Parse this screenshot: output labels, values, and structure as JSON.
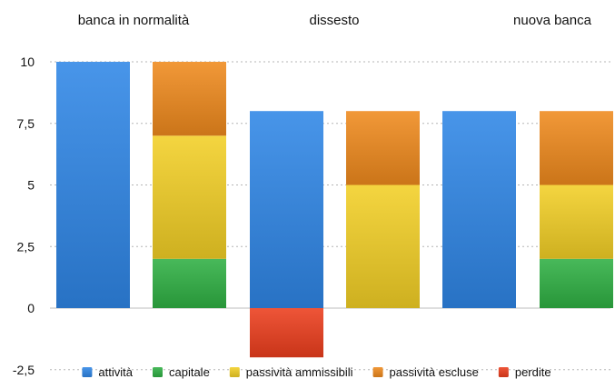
{
  "chart_data": {
    "type": "bar",
    "stacked": true,
    "groups": [
      "banca in normalità",
      "dissesto",
      "nuova banca"
    ],
    "ylim": [
      -2.5,
      10
    ],
    "yticks": [
      "10",
      "7,5",
      "5",
      "2,5",
      "0",
      "-2,5"
    ],
    "ytick_values": [
      10,
      7.5,
      5,
      2.5,
      0,
      -2.5
    ],
    "grid": true,
    "legend_position": "bottom",
    "legend": [
      {
        "key": "attivita",
        "label": "attività",
        "color": "#2f86e6"
      },
      {
        "key": "capitale",
        "label": "capitale",
        "color": "#2fb043"
      },
      {
        "key": "passivita_ammissibili",
        "label": "passività ammissibili",
        "color": "#f2cf26"
      },
      {
        "key": "passivita_escluse",
        "label": "passività escluse",
        "color": "#ef8a1d"
      },
      {
        "key": "perdite",
        "label": "perdite",
        "color": "#ec3e1d"
      }
    ],
    "bars": [
      {
        "group": 0,
        "segments": [
          {
            "key": "attivita",
            "from": 0,
            "to": 10
          }
        ]
      },
      {
        "group": 0,
        "segments": [
          {
            "key": "capitale",
            "from": 0,
            "to": 2
          },
          {
            "key": "passivita_ammissibili",
            "from": 2,
            "to": 7
          },
          {
            "key": "passivita_escluse",
            "from": 7,
            "to": 10
          }
        ]
      },
      {
        "group": 1,
        "segments": [
          {
            "key": "attivita",
            "from": 0,
            "to": 8
          },
          {
            "key": "perdite",
            "from": -2,
            "to": 0
          }
        ]
      },
      {
        "group": 1,
        "segments": [
          {
            "key": "passivita_ammissibili",
            "from": 0,
            "to": 5
          },
          {
            "key": "passivita_escluse",
            "from": 5,
            "to": 8
          }
        ]
      },
      {
        "group": 2,
        "segments": [
          {
            "key": "attivita",
            "from": 0,
            "to": 8
          }
        ]
      },
      {
        "group": 2,
        "segments": [
          {
            "key": "capitale",
            "from": 0,
            "to": 2
          },
          {
            "key": "passivita_ammissibili",
            "from": 2,
            "to": 5
          },
          {
            "key": "passivita_escluse",
            "from": 5,
            "to": 8
          }
        ]
      }
    ]
  }
}
